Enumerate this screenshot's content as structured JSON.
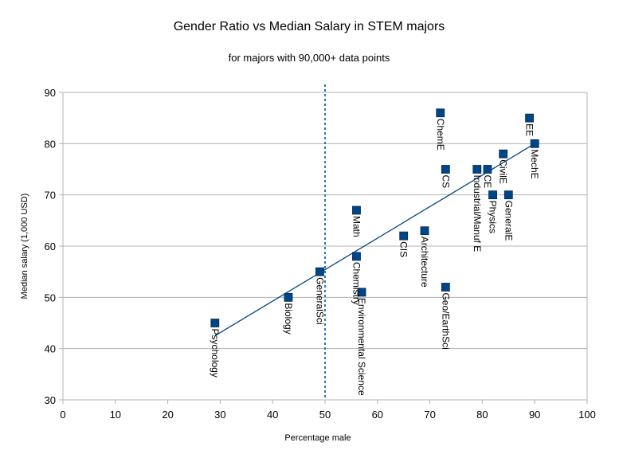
{
  "chart_data": {
    "type": "scatter",
    "title": "Gender Ratio vs Median Salary in STEM majors",
    "subtitle": "for majors with 90,000+ data points",
    "xlabel": "Percentage male",
    "ylabel": "Median salary (1,000 USD)",
    "xlim": [
      0,
      100
    ],
    "ylim": [
      30,
      90
    ],
    "xticks": [
      0,
      10,
      20,
      30,
      40,
      50,
      60,
      70,
      80,
      90,
      100
    ],
    "yticks": [
      30,
      40,
      50,
      60,
      70,
      80,
      90
    ],
    "grid": "horizontal",
    "marker_color": "#004586",
    "trendline": {
      "type": "linear",
      "x": [
        29,
        90
      ],
      "y": [
        42.5,
        80
      ],
      "color": "#004586"
    },
    "reference_line": {
      "x": 50,
      "style": "dashed",
      "color": "#2e75b6"
    },
    "points": [
      {
        "label": "Psychology",
        "x": 29,
        "y": 45
      },
      {
        "label": "Biology",
        "x": 43,
        "y": 50
      },
      {
        "label": "GeneralSci",
        "x": 49,
        "y": 55
      },
      {
        "label": "Math",
        "x": 56,
        "y": 67
      },
      {
        "label": "Chemistry",
        "x": 56,
        "y": 58
      },
      {
        "label": "Environmental Science",
        "x": 57,
        "y": 51
      },
      {
        "label": "CIS",
        "x": 65,
        "y": 62
      },
      {
        "label": "Architecture",
        "x": 69,
        "y": 63
      },
      {
        "label": "ChemE",
        "x": 72,
        "y": 86
      },
      {
        "label": "CS",
        "x": 73,
        "y": 75
      },
      {
        "label": "Geo/EarthSci",
        "x": 73,
        "y": 52
      },
      {
        "label": "Industrial/Manuf E",
        "x": 79,
        "y": 75
      },
      {
        "label": "CE",
        "x": 81,
        "y": 75
      },
      {
        "label": "Physics",
        "x": 82,
        "y": 70
      },
      {
        "label": "CivilE",
        "x": 84,
        "y": 78
      },
      {
        "label": "GeneralE",
        "x": 85,
        "y": 70
      },
      {
        "label": "EE",
        "x": 89,
        "y": 85
      },
      {
        "label": "MechE",
        "x": 90,
        "y": 80
      }
    ]
  }
}
